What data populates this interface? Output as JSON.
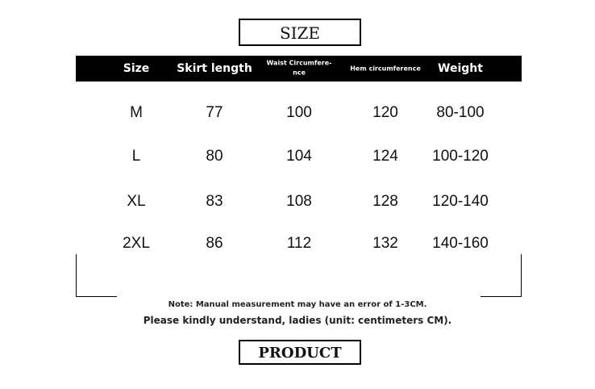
{
  "title": "SIZE",
  "table": {
    "header": [
      [
        "Size"
      ],
      [
        "Skirt length"
      ],
      [
        "Waist Circumfere-",
        "nce"
      ],
      [
        "Hem circumference"
      ],
      [
        "Weight"
      ]
    ],
    "rows": [
      [
        "M",
        77,
        100,
        120,
        "80-100"
      ],
      [
        "L",
        80,
        104,
        124,
        "100-120"
      ],
      [
        "XL",
        83,
        108,
        128,
        "120-140"
      ],
      [
        "2XL",
        86,
        112,
        132,
        "140-160"
      ]
    ]
  },
  "notes": [
    "Note: Manual measurement may have an error of 1-3CM.",
    "Please kindly understand, ladies (unit: centimeters CM)."
  ],
  "footer": "PRODUCT"
}
